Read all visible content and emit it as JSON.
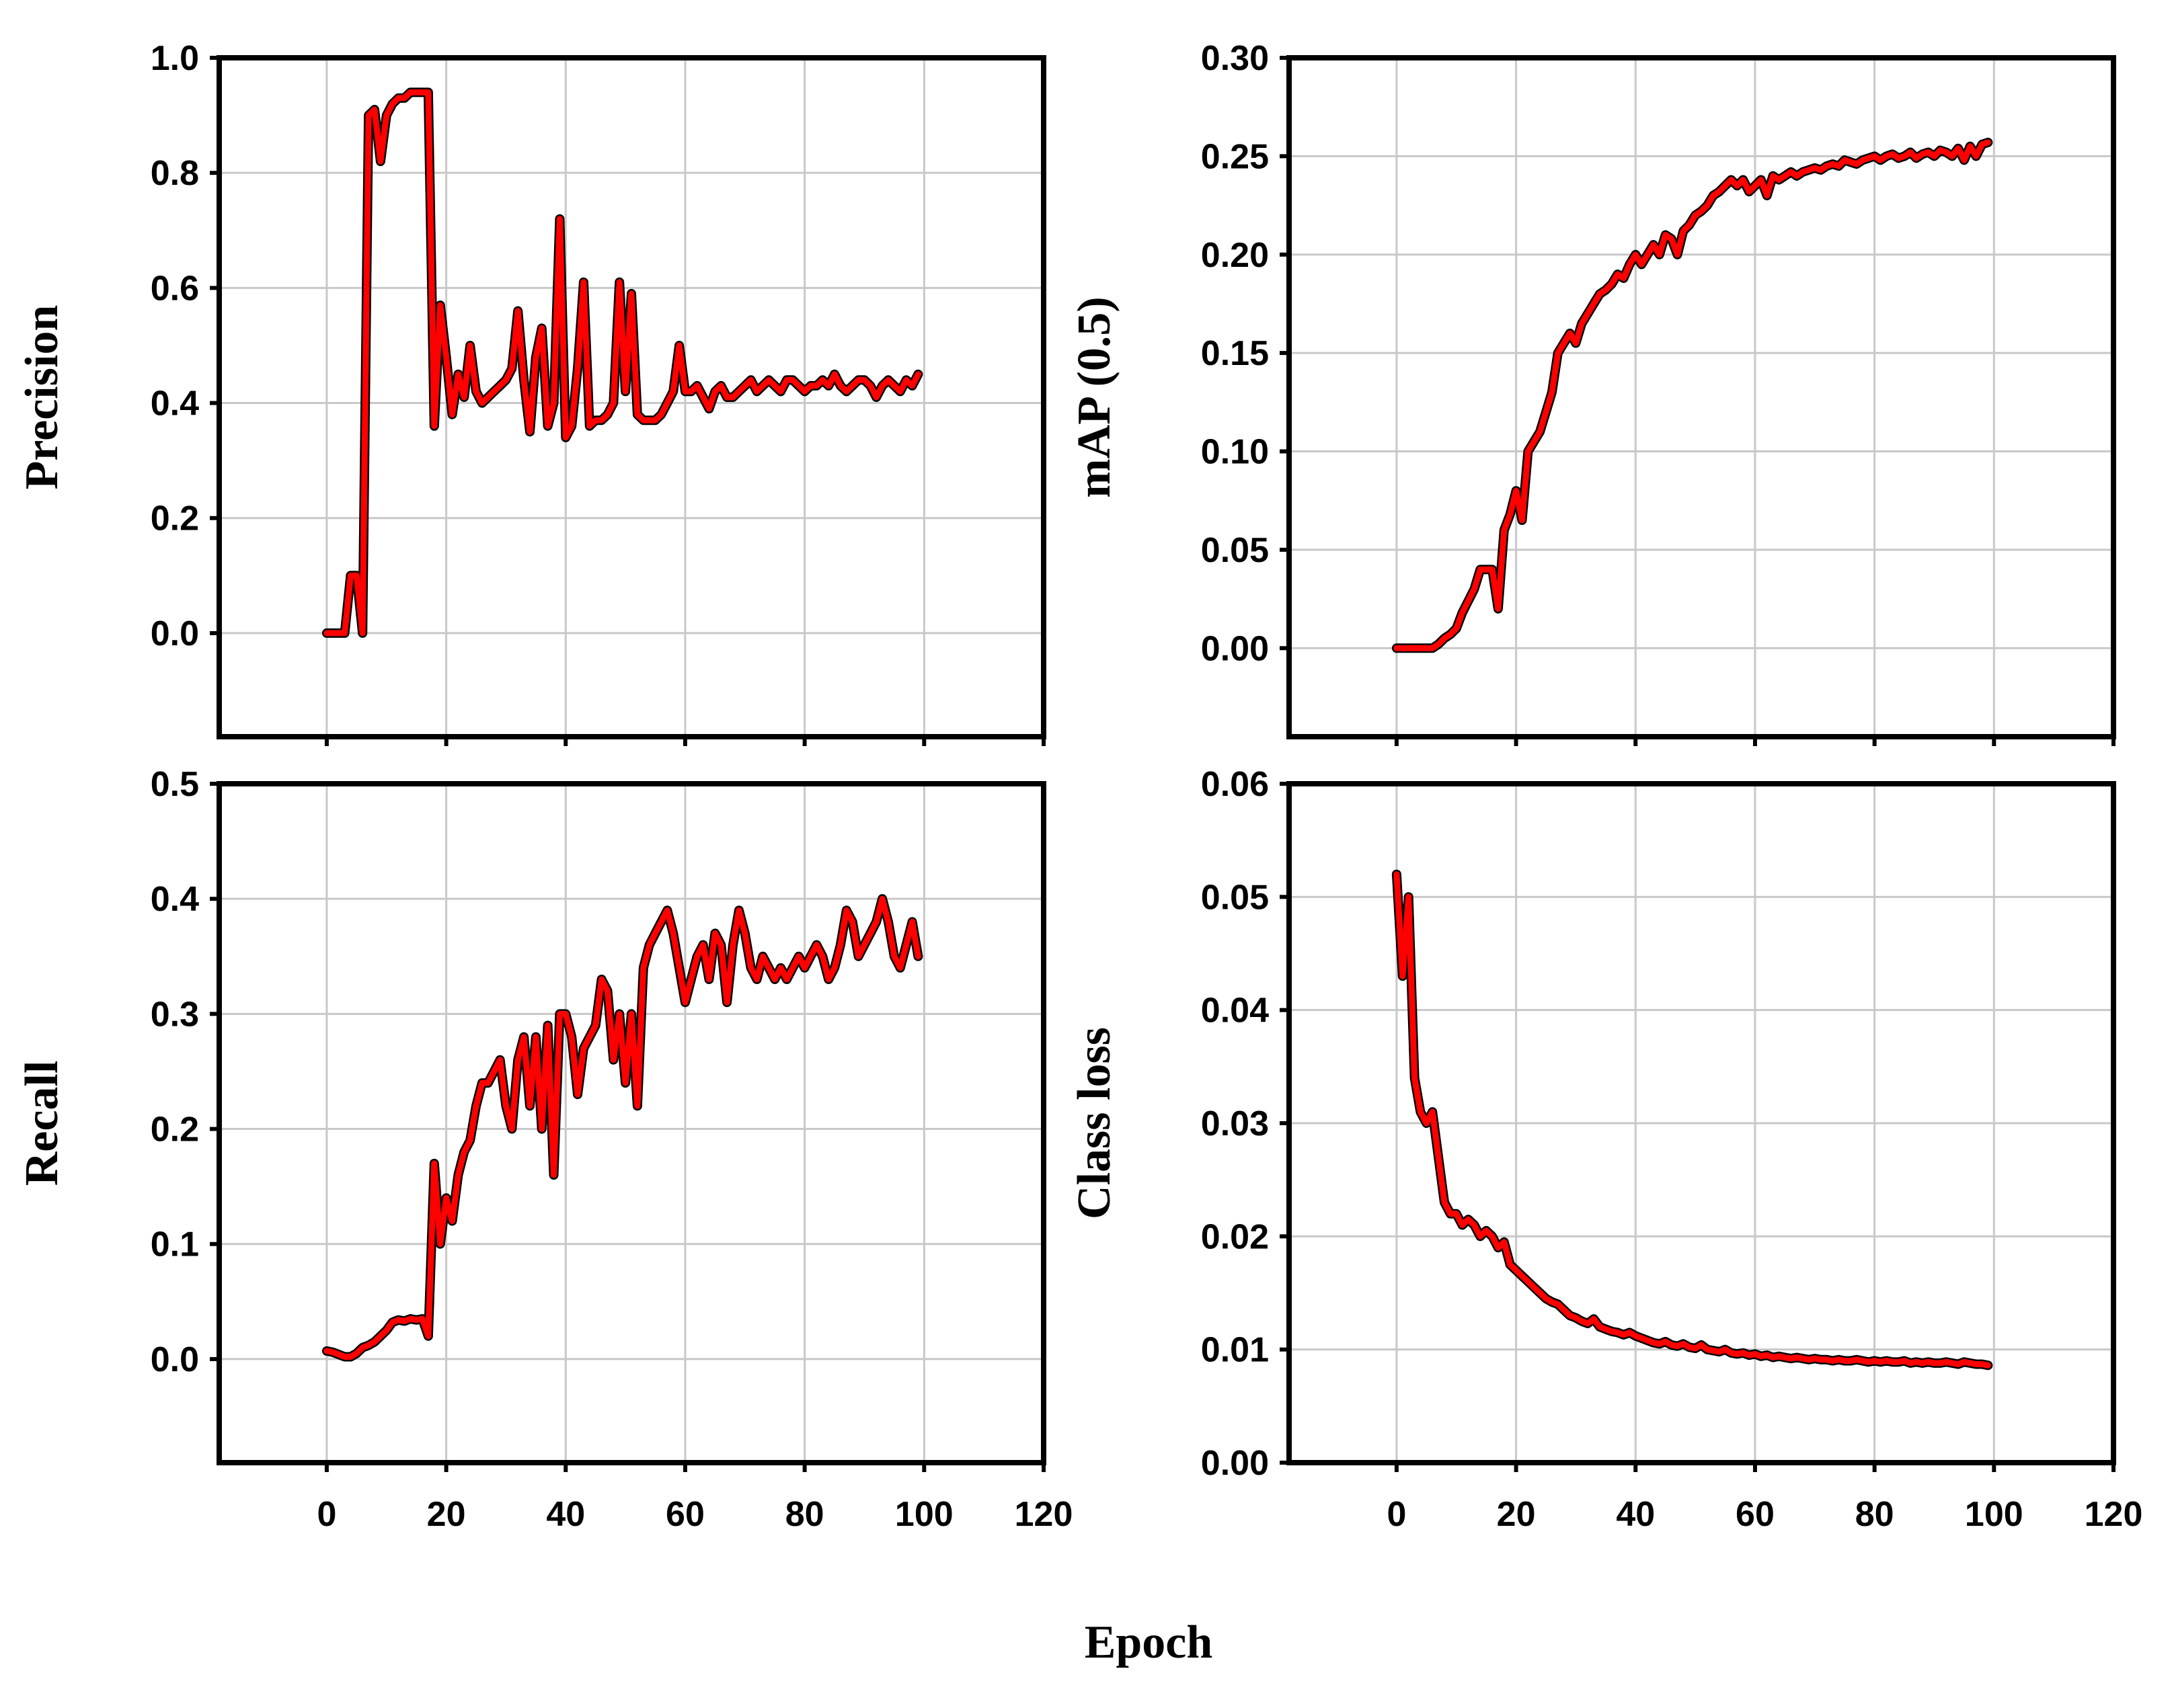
{
  "figure": {
    "xlabel": "Epoch"
  },
  "chart_data": [
    {
      "type": "line",
      "ylabel": "Precision",
      "xlim": [
        -18,
        120
      ],
      "ylim": [
        -0.18,
        1.0
      ],
      "xticks": [
        "0",
        "20",
        "40",
        "60",
        "80",
        "100",
        "120"
      ],
      "xtick_values": [
        0,
        20,
        40,
        60,
        80,
        100,
        120
      ],
      "yticks": [
        "0.0",
        "0.2",
        "0.4",
        "0.6",
        "0.8",
        "1.0"
      ],
      "ytick_values": [
        0.0,
        0.2,
        0.4,
        0.6,
        0.8,
        1.0
      ],
      "show_xtick_labels": false,
      "grid": true,
      "color": "#ff0000",
      "series": [
        {
          "x": [
            0,
            1,
            2,
            3,
            4,
            5,
            6,
            7,
            8,
            9,
            10,
            11,
            12,
            13,
            14,
            15,
            16,
            17,
            18,
            19,
            20,
            21,
            22,
            23,
            24,
            25,
            26,
            27,
            28,
            29,
            30,
            31,
            32,
            33,
            34,
            35,
            36,
            37,
            38,
            39,
            40,
            41,
            42,
            43,
            44,
            45,
            46,
            47,
            48,
            49,
            50,
            51,
            52,
            53,
            54,
            55,
            56,
            57,
            58,
            59,
            60,
            61,
            62,
            63,
            64,
            65,
            66,
            67,
            68,
            69,
            70,
            71,
            72,
            73,
            74,
            75,
            76,
            77,
            78,
            79,
            80,
            81,
            82,
            83,
            84,
            85,
            86,
            87,
            88,
            89,
            90,
            91,
            92,
            93,
            94,
            95,
            96,
            97,
            98,
            99
          ],
          "y": [
            0.0,
            0.0,
            0.0,
            0.0,
            0.1,
            0.1,
            0.0,
            0.9,
            0.91,
            0.82,
            0.9,
            0.92,
            0.93,
            0.93,
            0.94,
            0.94,
            0.94,
            0.94,
            0.36,
            0.57,
            0.48,
            0.38,
            0.45,
            0.41,
            0.5,
            0.42,
            0.4,
            0.41,
            0.42,
            0.43,
            0.44,
            0.46,
            0.56,
            0.44,
            0.35,
            0.48,
            0.53,
            0.36,
            0.4,
            0.72,
            0.34,
            0.36,
            0.46,
            0.61,
            0.36,
            0.37,
            0.37,
            0.38,
            0.4,
            0.61,
            0.42,
            0.59,
            0.38,
            0.37,
            0.37,
            0.37,
            0.38,
            0.4,
            0.42,
            0.5,
            0.42,
            0.42,
            0.43,
            0.41,
            0.39,
            0.42,
            0.43,
            0.41,
            0.41,
            0.42,
            0.43,
            0.44,
            0.42,
            0.43,
            0.44,
            0.43,
            0.42,
            0.44,
            0.44,
            0.43,
            0.42,
            0.43,
            0.43,
            0.44,
            0.43,
            0.45,
            0.43,
            0.42,
            0.43,
            0.44,
            0.44,
            0.43,
            0.41,
            0.43,
            0.44,
            0.43,
            0.42,
            0.44,
            0.43,
            0.45
          ]
        }
      ]
    },
    {
      "type": "line",
      "ylabel": "mAP (0.5)",
      "xlim": [
        -18,
        120
      ],
      "ylim": [
        -0.045,
        0.3
      ],
      "xticks": [
        "0",
        "20",
        "40",
        "60",
        "80",
        "100",
        "120"
      ],
      "xtick_values": [
        0,
        20,
        40,
        60,
        80,
        100,
        120
      ],
      "yticks": [
        "0.00",
        "0.05",
        "0.10",
        "0.15",
        "0.20",
        "0.25",
        "0.30"
      ],
      "ytick_values": [
        0.0,
        0.05,
        0.1,
        0.15,
        0.2,
        0.25,
        0.3
      ],
      "show_xtick_labels": false,
      "grid": true,
      "color": "#ff0000",
      "series": [
        {
          "x": [
            0,
            1,
            2,
            3,
            4,
            5,
            6,
            7,
            8,
            9,
            10,
            11,
            12,
            13,
            14,
            15,
            16,
            17,
            18,
            19,
            20,
            21,
            22,
            23,
            24,
            25,
            26,
            27,
            28,
            29,
            30,
            31,
            32,
            33,
            34,
            35,
            36,
            37,
            38,
            39,
            40,
            41,
            42,
            43,
            44,
            45,
            46,
            47,
            48,
            49,
            50,
            51,
            52,
            53,
            54,
            55,
            56,
            57,
            58,
            59,
            60,
            61,
            62,
            63,
            64,
            65,
            66,
            67,
            68,
            69,
            70,
            71,
            72,
            73,
            74,
            75,
            76,
            77,
            78,
            79,
            80,
            81,
            82,
            83,
            84,
            85,
            86,
            87,
            88,
            89,
            90,
            91,
            92,
            93,
            94,
            95,
            96,
            97,
            98,
            99
          ],
          "y": [
            0.0,
            0.0,
            0.0,
            0.0,
            0.0,
            0.0,
            0.0,
            0.002,
            0.005,
            0.007,
            0.01,
            0.018,
            0.024,
            0.03,
            0.04,
            0.04,
            0.04,
            0.02,
            0.06,
            0.068,
            0.08,
            0.065,
            0.1,
            0.105,
            0.11,
            0.12,
            0.13,
            0.15,
            0.155,
            0.16,
            0.155,
            0.165,
            0.17,
            0.175,
            0.18,
            0.182,
            0.185,
            0.19,
            0.188,
            0.195,
            0.2,
            0.195,
            0.2,
            0.205,
            0.2,
            0.21,
            0.208,
            0.2,
            0.212,
            0.215,
            0.22,
            0.222,
            0.225,
            0.23,
            0.232,
            0.235,
            0.238,
            0.235,
            0.238,
            0.232,
            0.235,
            0.238,
            0.23,
            0.24,
            0.238,
            0.24,
            0.242,
            0.24,
            0.242,
            0.243,
            0.244,
            0.243,
            0.245,
            0.246,
            0.245,
            0.248,
            0.247,
            0.246,
            0.248,
            0.249,
            0.25,
            0.248,
            0.25,
            0.251,
            0.249,
            0.25,
            0.252,
            0.249,
            0.251,
            0.252,
            0.25,
            0.253,
            0.252,
            0.25,
            0.254,
            0.248,
            0.255,
            0.25,
            0.256,
            0.257
          ]
        }
      ]
    },
    {
      "type": "line",
      "ylabel": "Recall",
      "xlim": [
        -18,
        120
      ],
      "ylim": [
        -0.09,
        0.5
      ],
      "xticks": [
        "0",
        "20",
        "40",
        "60",
        "80",
        "100",
        "120"
      ],
      "xtick_values": [
        0,
        20,
        40,
        60,
        80,
        100,
        120
      ],
      "yticks": [
        "0.0",
        "0.1",
        "0.2",
        "0.3",
        "0.4",
        "0.5"
      ],
      "ytick_values": [
        0.0,
        0.1,
        0.2,
        0.3,
        0.4,
        0.5
      ],
      "show_xtick_labels": true,
      "grid": true,
      "color": "#ff0000",
      "series": [
        {
          "x": [
            0,
            1,
            2,
            3,
            4,
            5,
            6,
            7,
            8,
            9,
            10,
            11,
            12,
            13,
            14,
            15,
            16,
            17,
            18,
            19,
            20,
            21,
            22,
            23,
            24,
            25,
            26,
            27,
            28,
            29,
            30,
            31,
            32,
            33,
            34,
            35,
            36,
            37,
            38,
            39,
            40,
            41,
            42,
            43,
            44,
            45,
            46,
            47,
            48,
            49,
            50,
            51,
            52,
            53,
            54,
            55,
            56,
            57,
            58,
            59,
            60,
            61,
            62,
            63,
            64,
            65,
            66,
            67,
            68,
            69,
            70,
            71,
            72,
            73,
            74,
            75,
            76,
            77,
            78,
            79,
            80,
            81,
            82,
            83,
            84,
            85,
            86,
            87,
            88,
            89,
            90,
            91,
            92,
            93,
            94,
            95,
            96,
            97,
            98,
            99
          ],
          "y": [
            0.007,
            0.006,
            0.004,
            0.002,
            0.002,
            0.005,
            0.01,
            0.012,
            0.015,
            0.02,
            0.025,
            0.032,
            0.034,
            0.033,
            0.035,
            0.034,
            0.035,
            0.02,
            0.17,
            0.1,
            0.14,
            0.12,
            0.16,
            0.18,
            0.19,
            0.22,
            0.24,
            0.24,
            0.25,
            0.26,
            0.22,
            0.2,
            0.26,
            0.28,
            0.22,
            0.28,
            0.2,
            0.29,
            0.16,
            0.3,
            0.3,
            0.28,
            0.23,
            0.27,
            0.28,
            0.29,
            0.33,
            0.32,
            0.26,
            0.3,
            0.24,
            0.3,
            0.22,
            0.34,
            0.36,
            0.37,
            0.38,
            0.39,
            0.37,
            0.34,
            0.31,
            0.33,
            0.35,
            0.36,
            0.33,
            0.37,
            0.36,
            0.31,
            0.36,
            0.39,
            0.37,
            0.34,
            0.33,
            0.35,
            0.34,
            0.33,
            0.34,
            0.33,
            0.34,
            0.35,
            0.34,
            0.35,
            0.36,
            0.35,
            0.33,
            0.34,
            0.36,
            0.39,
            0.38,
            0.35,
            0.36,
            0.37,
            0.38,
            0.4,
            0.38,
            0.35,
            0.34,
            0.36,
            0.38,
            0.35
          ]
        }
      ]
    },
    {
      "type": "line",
      "ylabel": "Class loss",
      "xlim": [
        -18,
        120
      ],
      "ylim": [
        0.0,
        0.06
      ],
      "xticks": [
        "0",
        "20",
        "40",
        "60",
        "80",
        "100",
        "120"
      ],
      "xtick_values": [
        0,
        20,
        40,
        60,
        80,
        100,
        120
      ],
      "yticks": [
        "0.00",
        "0.01",
        "0.02",
        "0.03",
        "0.04",
        "0.05",
        "0.06"
      ],
      "ytick_values": [
        0.0,
        0.01,
        0.02,
        0.03,
        0.04,
        0.05,
        0.06
      ],
      "show_xtick_labels": true,
      "grid": true,
      "color": "#ff0000",
      "series": [
        {
          "x": [
            0,
            1,
            2,
            3,
            4,
            5,
            6,
            7,
            8,
            9,
            10,
            11,
            12,
            13,
            14,
            15,
            16,
            17,
            18,
            19,
            20,
            21,
            22,
            23,
            24,
            25,
            26,
            27,
            28,
            29,
            30,
            31,
            32,
            33,
            34,
            35,
            36,
            37,
            38,
            39,
            40,
            41,
            42,
            43,
            44,
            45,
            46,
            47,
            48,
            49,
            50,
            51,
            52,
            53,
            54,
            55,
            56,
            57,
            58,
            59,
            60,
            61,
            62,
            63,
            64,
            65,
            66,
            67,
            68,
            69,
            70,
            71,
            72,
            73,
            74,
            75,
            76,
            77,
            78,
            79,
            80,
            81,
            82,
            83,
            84,
            85,
            86,
            87,
            88,
            89,
            90,
            91,
            92,
            93,
            94,
            95,
            96,
            97,
            98,
            99
          ],
          "y": [
            0.052,
            0.043,
            0.05,
            0.034,
            0.031,
            0.03,
            0.031,
            0.027,
            0.023,
            0.022,
            0.022,
            0.021,
            0.0215,
            0.021,
            0.02,
            0.0205,
            0.02,
            0.019,
            0.0195,
            0.0175,
            0.017,
            0.0165,
            0.016,
            0.0155,
            0.015,
            0.0145,
            0.0142,
            0.014,
            0.0135,
            0.013,
            0.0128,
            0.0125,
            0.0123,
            0.0127,
            0.012,
            0.0118,
            0.0116,
            0.0115,
            0.0113,
            0.0115,
            0.0112,
            0.011,
            0.0108,
            0.0106,
            0.0105,
            0.0107,
            0.0104,
            0.0103,
            0.0105,
            0.0102,
            0.0101,
            0.0104,
            0.01,
            0.0099,
            0.0098,
            0.01,
            0.0097,
            0.0096,
            0.0097,
            0.0095,
            0.0096,
            0.0094,
            0.0095,
            0.0093,
            0.0094,
            0.0093,
            0.0092,
            0.0093,
            0.0092,
            0.0091,
            0.0092,
            0.0091,
            0.0091,
            0.009,
            0.0091,
            0.009,
            0.009,
            0.0091,
            0.009,
            0.0089,
            0.009,
            0.0089,
            0.009,
            0.0089,
            0.0089,
            0.009,
            0.0088,
            0.0089,
            0.0088,
            0.0089,
            0.0088,
            0.0088,
            0.0089,
            0.0088,
            0.0087,
            0.0089,
            0.0088,
            0.0087,
            0.0087,
            0.0086
          ]
        }
      ]
    }
  ]
}
